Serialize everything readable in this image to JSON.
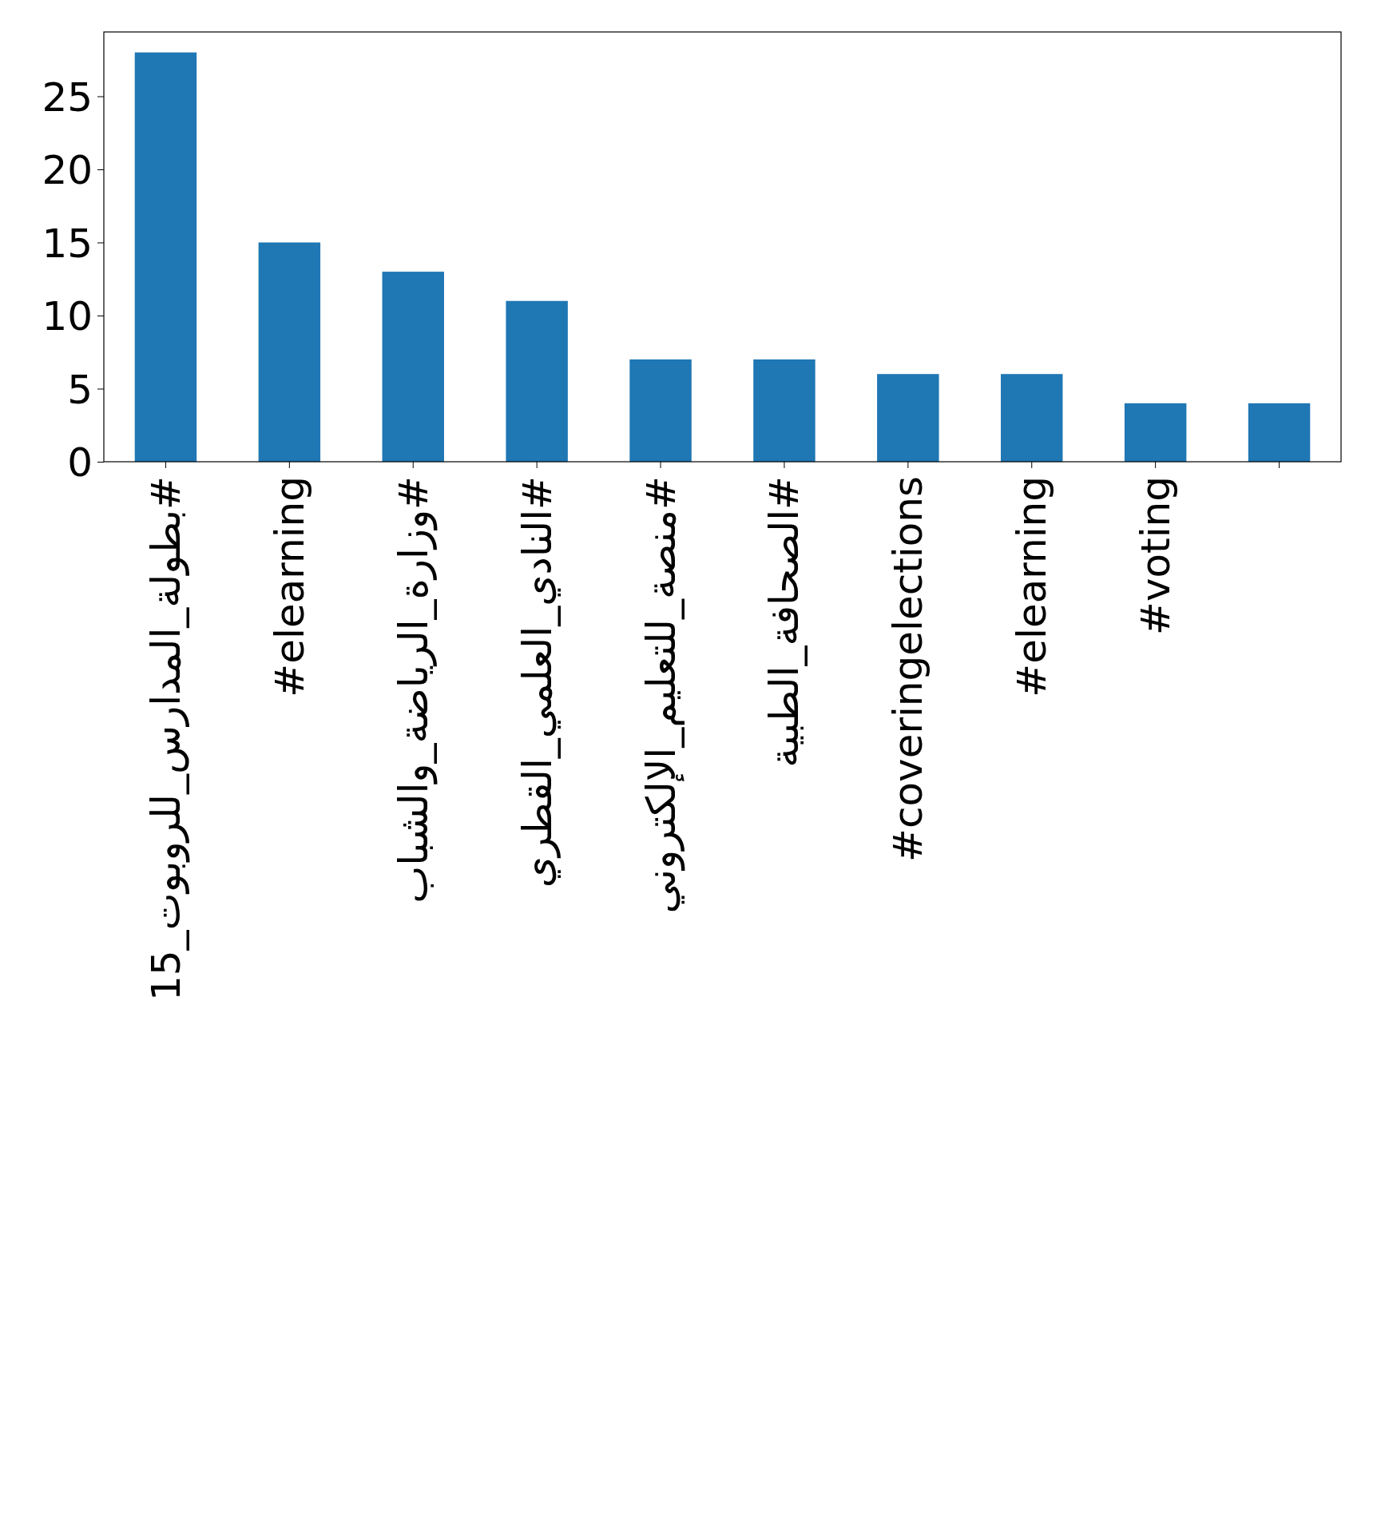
{
  "chart_data": {
    "type": "bar",
    "categories": [
      "#بطولة_المدارس_للروبوت_15",
      "#elearning",
      "#وزارة_الرياضة_والشباب",
      "#النادي_العلمي_القطري",
      "#منصة_للتعليم_الإلكتروني",
      "#الصحافة_الطبية",
      "#coveringelections",
      "#elearning",
      "#voting",
      null
    ],
    "values": [
      28,
      15,
      13,
      11,
      7,
      7,
      6,
      6,
      4,
      4
    ],
    "color": "#1f77b4",
    "ylim": [
      0,
      29.4
    ],
    "yticks": [
      0,
      5,
      10,
      15,
      20,
      25
    ],
    "grid": false
  }
}
